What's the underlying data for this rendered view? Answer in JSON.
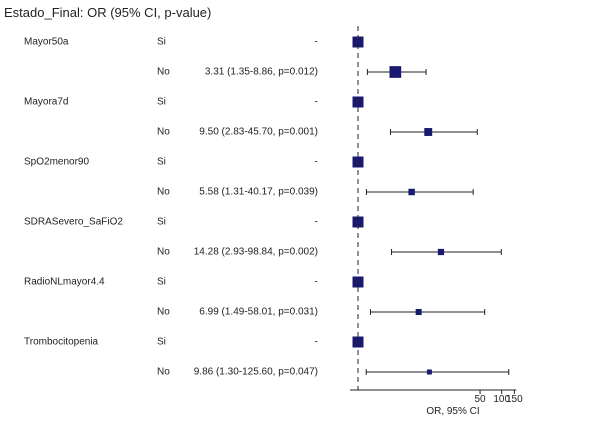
{
  "chart_data": {
    "type": "forest",
    "title": "Estado_Final: OR (95% CI, p-value)",
    "xlabel": "OR, 95% CI",
    "x_scale": "log",
    "x_ticks": [
      50,
      100,
      150
    ],
    "reference_line": 1,
    "reference_line_style": "dashed",
    "colors": {
      "marker": "#191970",
      "line": "#222222"
    },
    "variables": [
      {
        "name": "Mayor50a",
        "levels": [
          {
            "level": "Si",
            "or_text": "-",
            "or": 1,
            "ci_low": 1,
            "ci_high": 1
          },
          {
            "level": "No",
            "or_text": "3.31 (1.35-8.86, p=0.012)",
            "or": 3.31,
            "ci_low": 1.35,
            "ci_high": 8.86
          }
        ]
      },
      {
        "name": "Mayora7d",
        "levels": [
          {
            "level": "Si",
            "or_text": "-",
            "or": 1,
            "ci_low": 1,
            "ci_high": 1
          },
          {
            "level": "No",
            "or_text": "9.50 (2.83-45.70, p=0.001)",
            "or": 9.5,
            "ci_low": 2.83,
            "ci_high": 45.7
          }
        ]
      },
      {
        "name": "SpO2menor90",
        "levels": [
          {
            "level": "Si",
            "or_text": "-",
            "or": 1,
            "ci_low": 1,
            "ci_high": 1
          },
          {
            "level": "No",
            "or_text": "5.58 (1.31-40.17, p=0.039)",
            "or": 5.58,
            "ci_low": 1.31,
            "ci_high": 40.17
          }
        ]
      },
      {
        "name": "SDRASevero_SaFiO2",
        "levels": [
          {
            "level": "Si",
            "or_text": "-",
            "or": 1,
            "ci_low": 1,
            "ci_high": 1
          },
          {
            "level": "No",
            "or_text": "14.28 (2.93-98.84, p=0.002)",
            "or": 14.28,
            "ci_low": 2.93,
            "ci_high": 98.84
          }
        ]
      },
      {
        "name": "RadioNLmayor4.4",
        "levels": [
          {
            "level": "Si",
            "or_text": "-",
            "or": 1,
            "ci_low": 1,
            "ci_high": 1
          },
          {
            "level": "No",
            "or_text": "6.99 (1.49-58.01, p=0.031)",
            "or": 6.99,
            "ci_low": 1.49,
            "ci_high": 58.01
          }
        ]
      },
      {
        "name": "Trombocitopenia",
        "levels": [
          {
            "level": "Si",
            "or_text": "-",
            "or": 1,
            "ci_low": 1,
            "ci_high": 1
          },
          {
            "level": "No",
            "or_text": "9.86 (1.30-125.60, p=0.047)",
            "or": 9.86,
            "ci_low": 1.3,
            "ci_high": 125.6
          }
        ]
      }
    ]
  }
}
